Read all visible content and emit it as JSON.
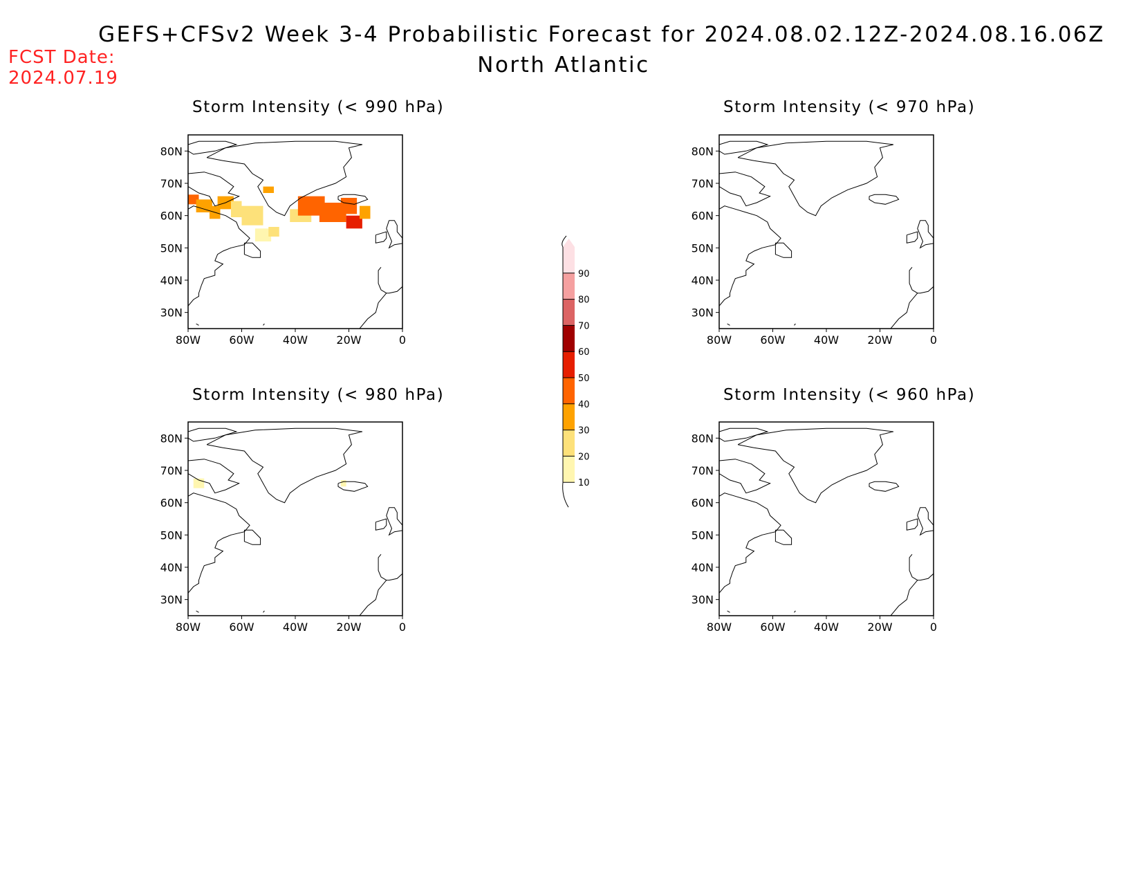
{
  "header": {
    "title": "GEFS+CFSv2 Week 3-4 Probabilistic Forecast for 2024.08.02.12Z-2024.08.16.06Z",
    "subtitle": "North Atlantic",
    "fcst_label": "FCST Date:",
    "fcst_value": "2024.07.19"
  },
  "axes": {
    "lat_labels": [
      "80N",
      "70N",
      "60N",
      "50N",
      "40N",
      "30N"
    ],
    "lat_values": [
      80,
      70,
      60,
      50,
      40,
      30
    ],
    "lon_labels": [
      "80W",
      "60W",
      "40W",
      "20W",
      "0"
    ],
    "lon_values": [
      -80,
      -60,
      -40,
      -20,
      0
    ],
    "lon_range": [
      -80,
      0
    ],
    "lat_range": [
      25,
      85
    ]
  },
  "colorbar": {
    "levels": [
      "10",
      "20",
      "30",
      "40",
      "50",
      "60",
      "70",
      "80",
      "90"
    ],
    "colors": [
      "#fff6b0",
      "#fde17a",
      "#fea200",
      "#ff6400",
      "#e61e00",
      "#a00000",
      "#dc6464",
      "#f5a0a0",
      "#fde0e4"
    ]
  },
  "panels": [
    {
      "id": "990",
      "title": "Storm Intensity (< 990 hPa)",
      "cells": [
        {
          "lon": -78,
          "lat": 65,
          "w": 4,
          "h": 3,
          "level": 3
        },
        {
          "lon": -74,
          "lat": 63,
          "w": 6,
          "h": 4,
          "level": 2
        },
        {
          "lon": -70,
          "lat": 61,
          "w": 4,
          "h": 4,
          "level": 2
        },
        {
          "lon": -66,
          "lat": 64,
          "w": 6,
          "h": 4,
          "level": 2
        },
        {
          "lon": -62,
          "lat": 62,
          "w": 4,
          "h": 5,
          "level": 1
        },
        {
          "lon": -56,
          "lat": 60,
          "w": 8,
          "h": 6,
          "level": 1
        },
        {
          "lon": -52,
          "lat": 54,
          "w": 6,
          "h": 4,
          "level": 0
        },
        {
          "lon": -48,
          "lat": 55,
          "w": 4,
          "h": 3,
          "level": 1
        },
        {
          "lon": -50,
          "lat": 68,
          "w": 4,
          "h": 2,
          "level": 2
        },
        {
          "lon": -38,
          "lat": 60,
          "w": 8,
          "h": 4,
          "level": 1
        },
        {
          "lon": -34,
          "lat": 63,
          "w": 10,
          "h": 6,
          "level": 3
        },
        {
          "lon": -26,
          "lat": 61,
          "w": 10,
          "h": 6,
          "level": 3
        },
        {
          "lon": -20,
          "lat": 63,
          "w": 6,
          "h": 5,
          "level": 3
        },
        {
          "lon": -18,
          "lat": 58,
          "w": 6,
          "h": 4,
          "level": 4
        },
        {
          "lon": -14,
          "lat": 61,
          "w": 4,
          "h": 4,
          "level": 2
        }
      ]
    },
    {
      "id": "970",
      "title": "Storm Intensity (< 970 hPa)",
      "cells": []
    },
    {
      "id": "980",
      "title": "Storm Intensity (< 980 hPa)",
      "cells": [
        {
          "lon": -76,
          "lat": 66,
          "w": 4,
          "h": 3,
          "level": 0
        },
        {
          "lon": -22,
          "lat": 66,
          "w": 2,
          "h": 2,
          "level": 0
        }
      ]
    },
    {
      "id": "960",
      "title": "Storm Intensity (< 960 hPa)",
      "cells": []
    }
  ]
}
